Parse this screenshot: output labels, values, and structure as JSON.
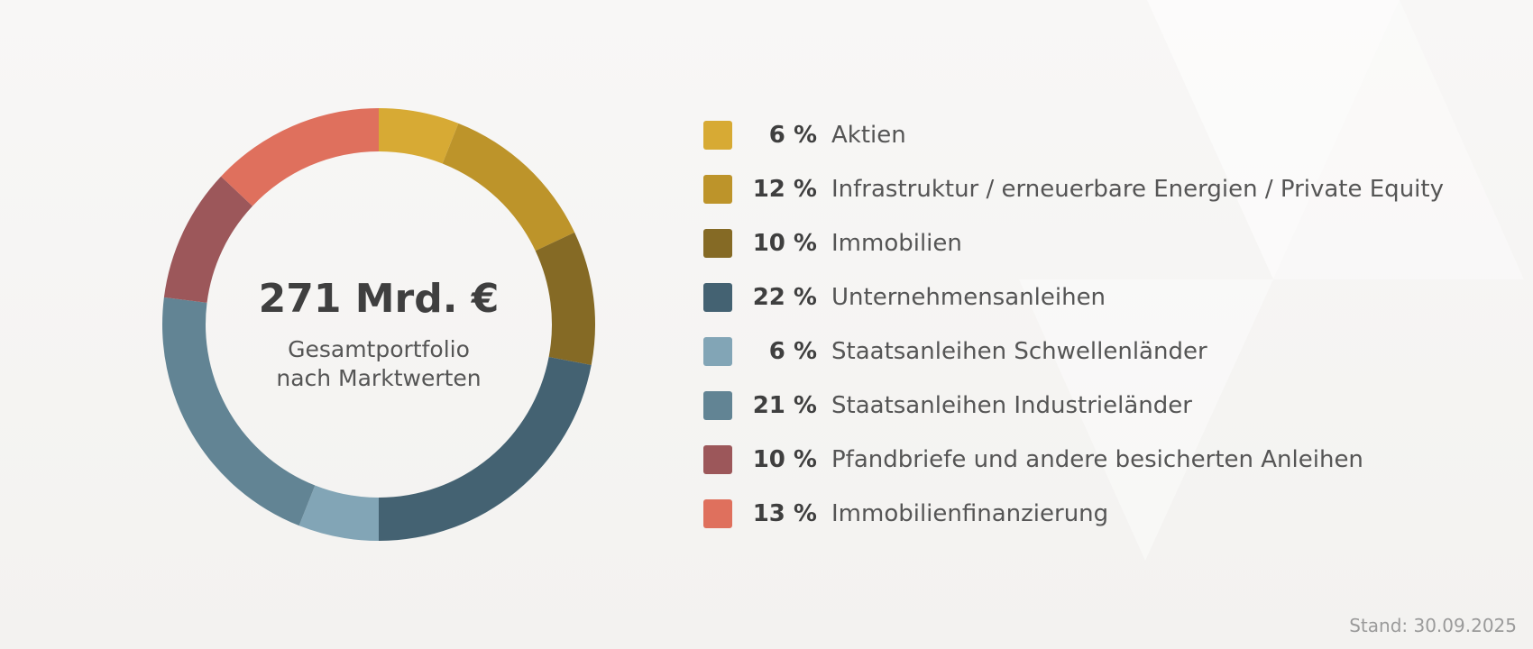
{
  "chart_data": {
    "type": "pie",
    "center_value": "271 Mrd. €",
    "center_caption_lines": [
      "Gesamtportfolio",
      "nach Marktwerten"
    ],
    "unit": "%",
    "legend_position": "right",
    "slices": [
      {
        "label": "Aktien",
        "value": 6,
        "display": "6 %",
        "color": "#d7aa34"
      },
      {
        "label": "Infrastruktur / erneuerbare Energien / Private Equity",
        "value": 12,
        "display": "12 %",
        "color": "#bd942a"
      },
      {
        "label": "Immobilien",
        "value": 10,
        "display": "10 %",
        "color": "#856a25"
      },
      {
        "label": "Unternehmensanleihen",
        "value": 22,
        "display": "22 %",
        "color": "#446272"
      },
      {
        "label": "Staatsanleihen Schwellenländer",
        "value": 6,
        "display": "6 %",
        "color": "#82a5b6"
      },
      {
        "label": "Staatsanleihen Industrieländer",
        "value": 21,
        "display": "21 %",
        "color": "#628494"
      },
      {
        "label": "Pfandbriefe und andere besicherten Anleihen",
        "value": 10,
        "display": "10 %",
        "color": "#9c575a"
      },
      {
        "label": "Immobilienfinanzierung",
        "value": 13,
        "display": "13 %",
        "color": "#df705d"
      }
    ]
  },
  "footer": {
    "stand": "Stand: 30.09.2025"
  }
}
